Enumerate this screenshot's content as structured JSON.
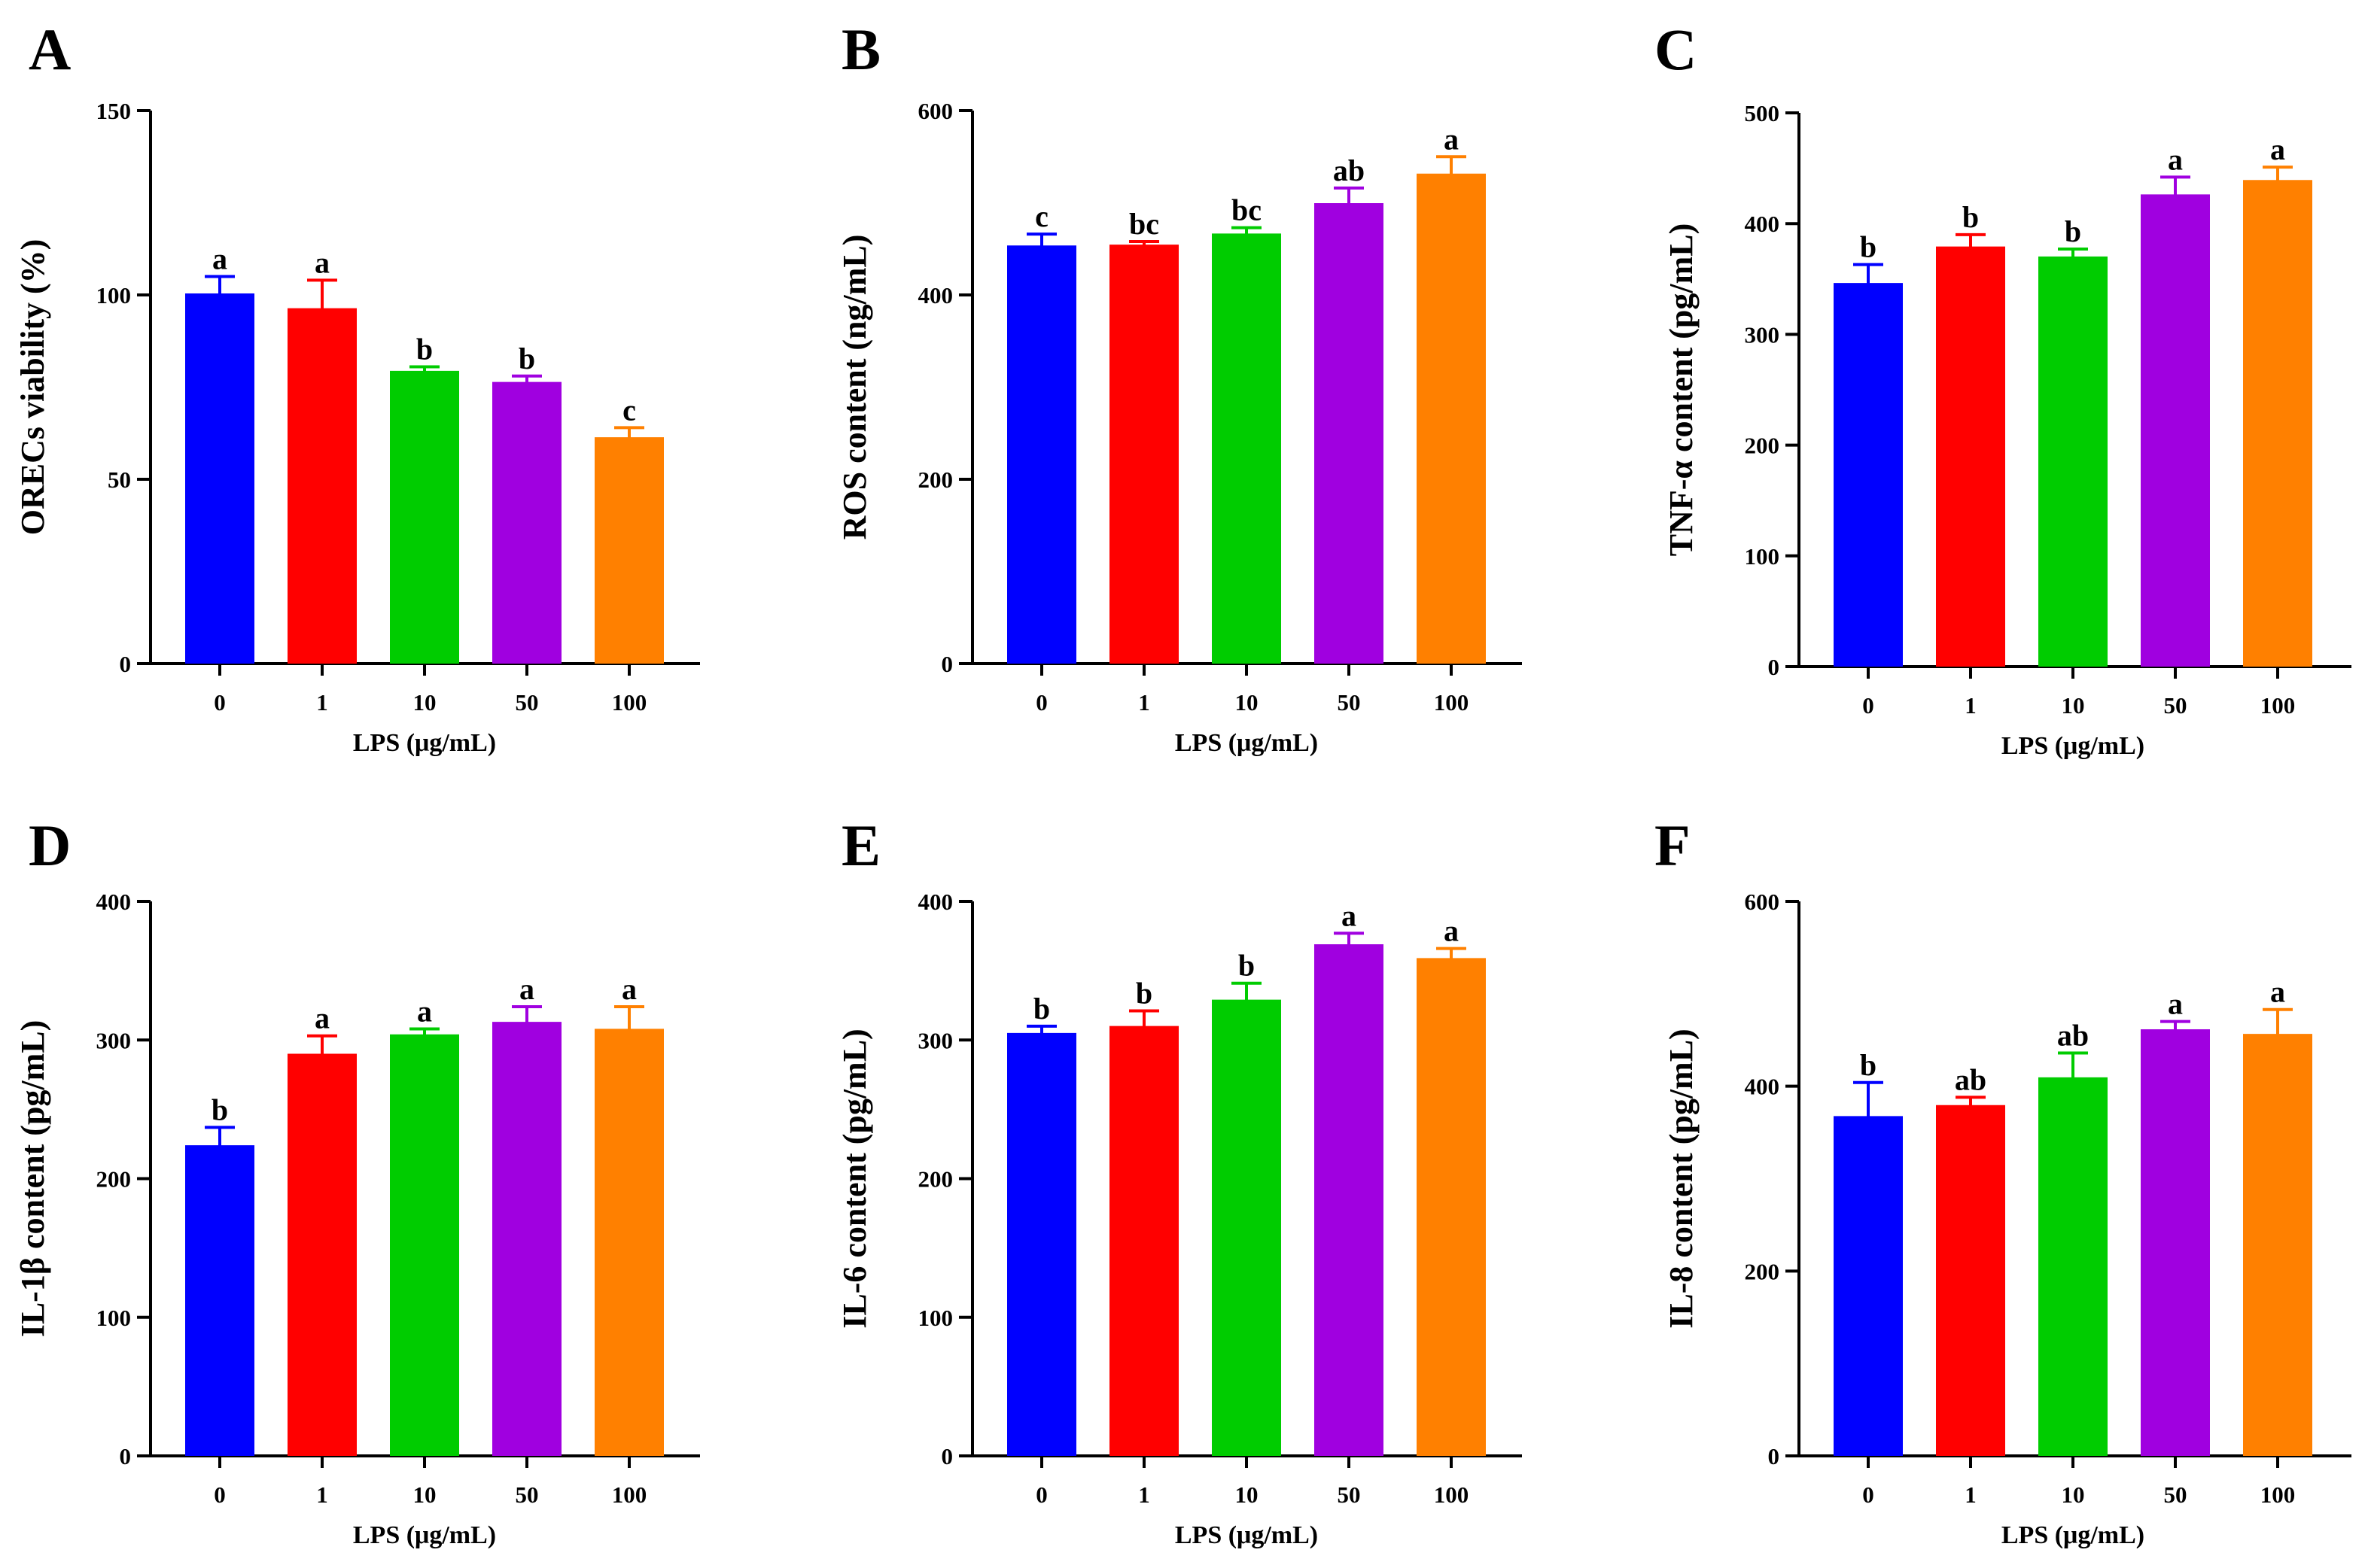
{
  "chart_data": [
    {
      "type": "bar",
      "panel": "A",
      "ylabel": "ORECs viability (%)",
      "xlabel": "LPS (μg/mL)",
      "ylim": [
        0,
        150
      ],
      "yticks": [
        0,
        50,
        100,
        150
      ],
      "categories": [
        "0",
        "1",
        "10",
        "50",
        "100"
      ],
      "values": [
        100,
        96,
        79,
        76,
        61
      ],
      "errors": [
        5,
        8,
        1.5,
        2,
        3
      ],
      "significance": [
        "a",
        "a",
        "b",
        "b",
        "c"
      ],
      "colors": [
        "#0000ff",
        "#ff0000",
        "#00cc00",
        "#a000e0",
        "#ff8000"
      ]
    },
    {
      "type": "bar",
      "panel": "B",
      "ylabel": "ROS content (ng/mL)",
      "xlabel": "LPS (μg/mL)",
      "ylim": [
        0,
        600
      ],
      "yticks": [
        0,
        200,
        400,
        600
      ],
      "categories": [
        "0",
        "1",
        "10",
        "50",
        "100"
      ],
      "values": [
        452,
        453,
        465,
        498,
        530
      ],
      "errors": [
        14,
        5,
        8,
        18,
        20
      ],
      "significance": [
        "c",
        "bc",
        "bc",
        "ab",
        "a"
      ],
      "colors": [
        "#0000ff",
        "#ff0000",
        "#00cc00",
        "#a000e0",
        "#ff8000"
      ]
    },
    {
      "type": "bar",
      "panel": "C",
      "ylabel": "TNF-α content (pg/mL)",
      "xlabel": "LPS (μg/mL)",
      "ylim": [
        0,
        500
      ],
      "yticks": [
        0,
        100,
        200,
        300,
        400,
        500
      ],
      "categories": [
        "0",
        "1",
        "10",
        "50",
        "100"
      ],
      "values": [
        345,
        378,
        369,
        425,
        438
      ],
      "errors": [
        18,
        12,
        8,
        17,
        13
      ],
      "significance": [
        "b",
        "b",
        "b",
        "a",
        "a"
      ],
      "colors": [
        "#0000ff",
        "#ff0000",
        "#00cc00",
        "#a000e0",
        "#ff8000"
      ]
    },
    {
      "type": "bar",
      "panel": "D",
      "ylabel": "IL-1β content (pg/mL)",
      "xlabel": "LPS (μg/mL)",
      "ylim": [
        0,
        400
      ],
      "yticks": [
        0,
        100,
        200,
        300,
        400
      ],
      "categories": [
        "0",
        "1",
        "10",
        "50",
        "100"
      ],
      "values": [
        223,
        289,
        303,
        312,
        307
      ],
      "errors": [
        14,
        14,
        5,
        12,
        17
      ],
      "significance": [
        "b",
        "a",
        "a",
        "a",
        "a"
      ],
      "colors": [
        "#0000ff",
        "#ff0000",
        "#00cc00",
        "#a000e0",
        "#ff8000"
      ]
    },
    {
      "type": "bar",
      "panel": "E",
      "ylabel": "IL-6 content (pg/mL)",
      "xlabel": "LPS (μg/mL)",
      "ylim": [
        0,
        400
      ],
      "yticks": [
        0,
        100,
        200,
        300,
        400
      ],
      "categories": [
        "0",
        "1",
        "10",
        "50",
        "100"
      ],
      "values": [
        304,
        309,
        328,
        368,
        358
      ],
      "errors": [
        6,
        12,
        13,
        9,
        8
      ],
      "significance": [
        "b",
        "b",
        "b",
        "a",
        "a"
      ],
      "colors": [
        "#0000ff",
        "#ff0000",
        "#00cc00",
        "#a000e0",
        "#ff8000"
      ]
    },
    {
      "type": "bar",
      "panel": "F",
      "ylabel": "IL-8 content (pg/mL)",
      "xlabel": "LPS (μg/mL)",
      "ylim": [
        0,
        600
      ],
      "yticks": [
        0,
        200,
        400,
        600
      ],
      "categories": [
        "0",
        "1",
        "10",
        "50",
        "100"
      ],
      "values": [
        366,
        378,
        408,
        460,
        455
      ],
      "errors": [
        38,
        10,
        28,
        10,
        28
      ],
      "significance": [
        "b",
        "ab",
        "ab",
        "a",
        "a"
      ],
      "colors": [
        "#0000ff",
        "#ff0000",
        "#00cc00",
        "#a000e0",
        "#ff8000"
      ]
    }
  ]
}
